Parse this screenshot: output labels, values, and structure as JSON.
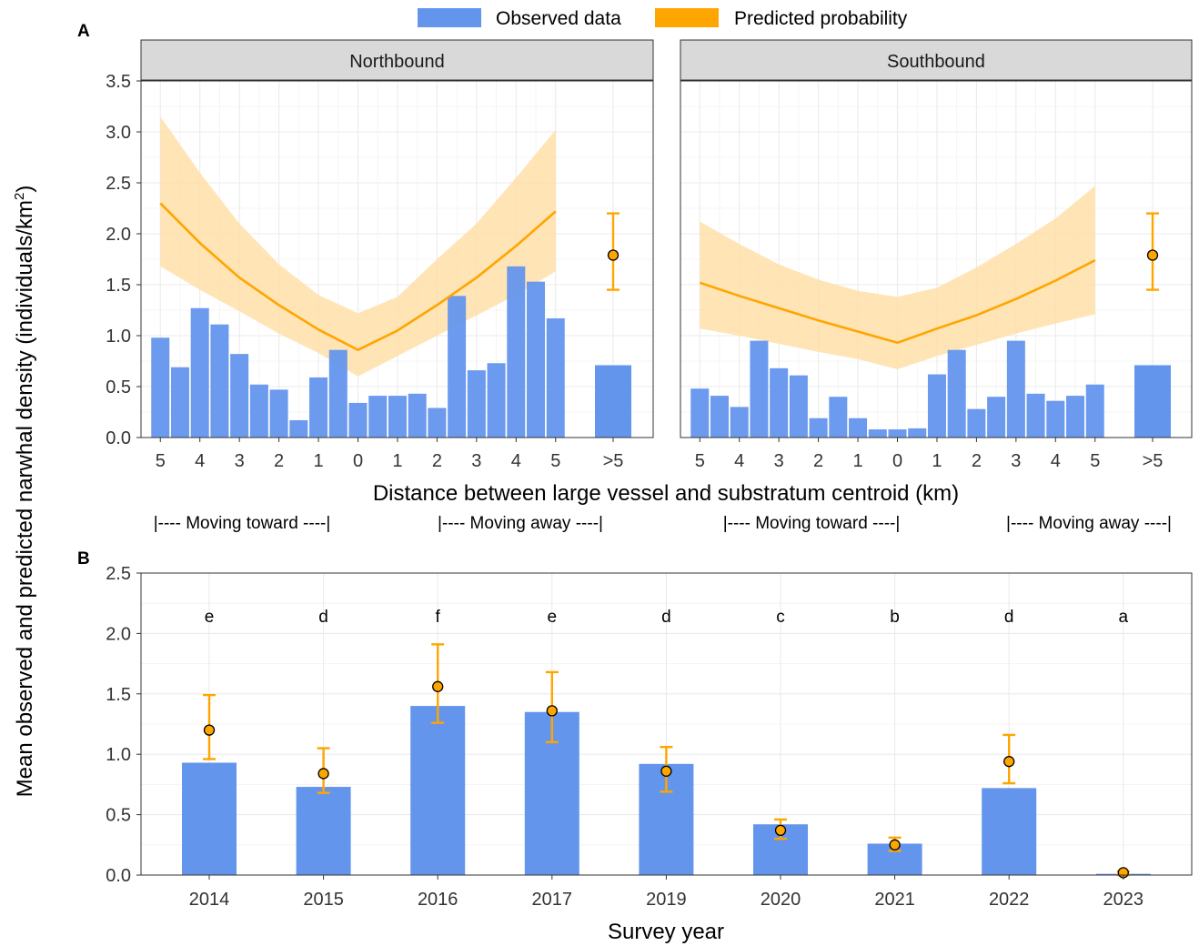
{
  "legend": {
    "observed_label": "Observed data",
    "predicted_label": "Predicted probability"
  },
  "colors": {
    "bar": "#6495ED",
    "line": "#FFA500",
    "ribbon": "#FFDFA8",
    "point": "#FFA500",
    "strip_bg": "#D9D9D9",
    "grid": "#EBEBEB"
  },
  "y_axis_title": "Mean observed and predicted narwhal density (individuals/km²)",
  "panel_a": {
    "tag": "A",
    "x_axis_title": "Distance between large vessel and substratum centroid (km)",
    "direction_labels": [
      "|---- Moving toward ----|",
      "|---- Moving away ----|",
      "|---- Moving toward ----|",
      "|---- Moving away ----|"
    ]
  },
  "panel_b": {
    "tag": "B",
    "x_axis_title": "Survey year"
  },
  "chart_data": [
    {
      "type": "bar",
      "facet": "Northbound",
      "ylim": [
        0,
        3.5
      ],
      "y_ticks": [
        "0.0",
        "0.5",
        "1.0",
        "1.5",
        "2.0",
        "2.5",
        "3.0",
        "3.5"
      ],
      "x_tick_labels": [
        "5",
        "4",
        "3",
        "2",
        "1",
        "0",
        "1",
        "2",
        "3",
        "4",
        "5",
        ">5"
      ],
      "bars": {
        "x": [
          -5.0,
          -4.5,
          -4.0,
          -3.5,
          -3.0,
          -2.5,
          -2.0,
          -1.5,
          -1.0,
          -0.5,
          0.0,
          0.5,
          1.0,
          1.5,
          2.0,
          2.5,
          3.0,
          3.5,
          4.0,
          4.5,
          5.0
        ],
        "values": [
          0.98,
          0.69,
          1.27,
          1.11,
          0.82,
          0.52,
          0.47,
          0.17,
          0.59,
          0.86,
          0.34,
          0.41,
          0.41,
          0.43,
          0.29,
          1.39,
          0.66,
          0.73,
          1.68,
          1.53,
          1.17
        ]
      },
      "curve": {
        "x": [
          -5,
          -4,
          -3,
          -2,
          -1,
          0,
          1,
          2,
          3,
          4,
          5
        ],
        "y": [
          2.3,
          1.91,
          1.57,
          1.3,
          1.06,
          0.86,
          1.05,
          1.3,
          1.57,
          1.88,
          2.22
        ],
        "lower": [
          1.68,
          1.45,
          1.24,
          1.02,
          0.83,
          0.6,
          0.8,
          1.0,
          1.2,
          1.4,
          1.63
        ],
        "upper": [
          3.15,
          2.6,
          2.1,
          1.7,
          1.4,
          1.22,
          1.38,
          1.75,
          2.1,
          2.55,
          3.02
        ]
      },
      "beyond_5": {
        "label": ">5",
        "observed": 0.71,
        "predicted": 1.79,
        "ci": [
          1.45,
          2.2
        ]
      }
    },
    {
      "type": "bar",
      "facet": "Southbound",
      "ylim": [
        0,
        3.5
      ],
      "x_tick_labels": [
        "5",
        "4",
        "3",
        "2",
        "1",
        "0",
        "1",
        "2",
        "3",
        "4",
        "5",
        ">5"
      ],
      "bars": {
        "x": [
          -5.0,
          -4.5,
          -4.0,
          -3.5,
          -3.0,
          -2.5,
          -2.0,
          -1.5,
          -1.0,
          -0.5,
          0.0,
          0.5,
          1.0,
          1.5,
          2.0,
          2.5,
          3.0,
          3.5,
          4.0,
          4.5,
          5.0
        ],
        "values": [
          0.48,
          0.41,
          0.3,
          0.95,
          0.68,
          0.61,
          0.19,
          0.4,
          0.19,
          0.08,
          0.08,
          0.09,
          0.62,
          0.86,
          0.28,
          0.4,
          0.95,
          0.43,
          0.36,
          0.41,
          0.52
        ]
      },
      "curve": {
        "x": [
          -5,
          -4,
          -3,
          -2,
          -1,
          0,
          1,
          2,
          3,
          4,
          5
        ],
        "y": [
          1.52,
          1.39,
          1.27,
          1.15,
          1.04,
          0.93,
          1.07,
          1.2,
          1.36,
          1.54,
          1.74
        ],
        "lower": [
          1.07,
          1.0,
          0.92,
          0.84,
          0.77,
          0.67,
          0.8,
          0.91,
          1.02,
          1.12,
          1.21
        ],
        "upper": [
          2.12,
          1.9,
          1.7,
          1.55,
          1.44,
          1.38,
          1.47,
          1.67,
          1.9,
          2.15,
          2.47
        ]
      },
      "beyond_5": {
        "label": ">5",
        "observed": 0.71,
        "predicted": 1.79,
        "ci": [
          1.45,
          2.2
        ]
      }
    },
    {
      "type": "bar",
      "ylim": [
        0,
        2.5
      ],
      "y_ticks": [
        "0.0",
        "0.5",
        "1.0",
        "1.5",
        "2.0",
        "2.5"
      ],
      "categories": [
        "2014",
        "2015",
        "2016",
        "2017",
        "2019",
        "2020",
        "2021",
        "2022",
        "2023"
      ],
      "observed": [
        0.93,
        0.73,
        1.4,
        1.35,
        0.92,
        0.42,
        0.26,
        0.72,
        0.01
      ],
      "predicted": [
        1.2,
        0.84,
        1.56,
        1.36,
        0.86,
        0.37,
        0.25,
        0.94,
        0.02
      ],
      "ci_low": [
        0.96,
        0.68,
        1.26,
        1.1,
        0.69,
        0.3,
        0.2,
        0.76,
        0.0
      ],
      "ci_high": [
        1.49,
        1.05,
        1.91,
        1.68,
        1.06,
        0.46,
        0.31,
        1.16,
        0.03
      ],
      "significance_letters": [
        "e",
        "d",
        "f",
        "e",
        "d",
        "c",
        "b",
        "d",
        "a"
      ]
    }
  ]
}
